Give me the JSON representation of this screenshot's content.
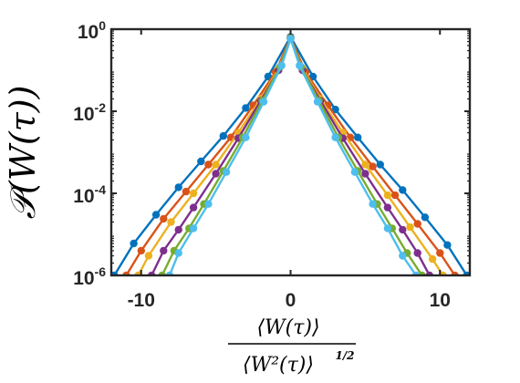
{
  "chart_data": {
    "type": "line",
    "title": "",
    "ylabel": "𝒫(W(τ))",
    "xlabel": {
      "numerator": "⟨W(τ)⟩",
      "denominator": "⟨W²(τ)⟩",
      "exponent": "1/2"
    },
    "x_scale": "linear",
    "y_scale": "log",
    "xlim": [
      -12,
      12
    ],
    "ylim": [
      1e-06,
      1
    ],
    "x_ticks": [
      {
        "value": -10,
        "label": "-10"
      },
      {
        "value": 0,
        "label": "0"
      },
      {
        "value": 10,
        "label": "10"
      }
    ],
    "y_ticks": [
      {
        "value": 1,
        "base": "10",
        "exp": "0"
      },
      {
        "value": 0.01,
        "base": "10",
        "exp": "-2"
      },
      {
        "value": 0.0001,
        "base": "10",
        "exp": "-4"
      },
      {
        "value": 1e-06,
        "base": "10",
        "exp": "-6"
      }
    ],
    "grid": false,
    "legend": "none",
    "series": [
      {
        "color": "#0072BD",
        "x": [
          -11.8,
          -10.5,
          -9.0,
          -7.5,
          -6.0,
          -4.5,
          -3.0,
          -1.5,
          0,
          1.5,
          3.0,
          4.5,
          6.0,
          7.5,
          9.0,
          10.5,
          11.8
        ],
        "y": [
          1e-06,
          6e-06,
          3e-05,
          0.00014,
          0.0006,
          0.0025,
          0.012,
          0.07,
          0.65,
          0.07,
          0.011,
          0.0023,
          0.0005,
          0.00012,
          2.6e-05,
          5.5e-06,
          1e-06
        ]
      },
      {
        "color": "#D95319",
        "x": [
          -11.0,
          -10.0,
          -8.5,
          -7.0,
          -5.5,
          -4.0,
          -2.5,
          -1.0,
          0,
          1.0,
          2.5,
          4.0,
          5.5,
          7.0,
          8.5,
          10.0,
          11.0
        ],
        "y": [
          1e-06,
          4e-06,
          2.4e-05,
          0.00011,
          0.0005,
          0.0023,
          0.014,
          0.09,
          0.62,
          0.09,
          0.014,
          0.0023,
          0.00045,
          9e-05,
          1.8e-05,
          3.5e-06,
          1e-06
        ]
      },
      {
        "color": "#EDB120",
        "x": [
          -10.2,
          -9.5,
          -8.0,
          -6.5,
          -5.0,
          -3.5,
          -2.0,
          -0.8,
          0,
          0.8,
          2.0,
          3.5,
          5.0,
          6.5,
          8.0,
          9.5,
          10.2
        ],
        "y": [
          1e-06,
          3e-06,
          2e-05,
          0.0001,
          0.0005,
          0.003,
          0.02,
          0.11,
          0.6,
          0.11,
          0.02,
          0.003,
          0.0005,
          9e-05,
          1.5e-05,
          2.5e-06,
          1e-06
        ]
      },
      {
        "color": "#7E2F8E",
        "x": [
          -9.3,
          -8.5,
          -7.5,
          -6.5,
          -5.0,
          -3.5,
          -2.0,
          -0.8,
          0,
          0.8,
          2.0,
          3.5,
          5.0,
          6.5,
          7.5,
          8.5,
          9.3
        ],
        "y": [
          1e-06,
          4e-06,
          1.3e-05,
          4.5e-05,
          0.0003,
          0.0022,
          0.018,
          0.1,
          0.6,
          0.1,
          0.018,
          0.0022,
          0.0003,
          4.5e-05,
          1.3e-05,
          3.5e-06,
          1e-06
        ]
      },
      {
        "color": "#77AC30",
        "x": [
          -8.6,
          -7.8,
          -6.8,
          -5.8,
          -4.5,
          -3.2,
          -1.9,
          -0.7,
          0,
          0.7,
          1.9,
          3.2,
          4.5,
          5.8,
          6.8,
          7.8,
          8.8
        ],
        "y": [
          1e-06,
          4e-06,
          1.4e-05,
          5.5e-05,
          0.00035,
          0.0023,
          0.018,
          0.12,
          0.6,
          0.12,
          0.018,
          0.0023,
          0.00035,
          5.5e-05,
          1.4e-05,
          3.5e-06,
          1e-06
        ]
      },
      {
        "color": "#4DBEEE",
        "x": [
          -8.1,
          -7.5,
          -6.5,
          -5.5,
          -4.3,
          -3.0,
          -1.8,
          -0.6,
          0,
          0.6,
          1.8,
          3.0,
          4.3,
          5.5,
          6.5,
          7.5,
          8.4
        ],
        "y": [
          1e-06,
          3.5e-06,
          1.4e-05,
          5.5e-05,
          0.00033,
          0.0023,
          0.017,
          0.13,
          0.58,
          0.13,
          0.017,
          0.0023,
          0.00033,
          5.5e-05,
          1.4e-05,
          3e-06,
          1e-06
        ]
      }
    ]
  }
}
